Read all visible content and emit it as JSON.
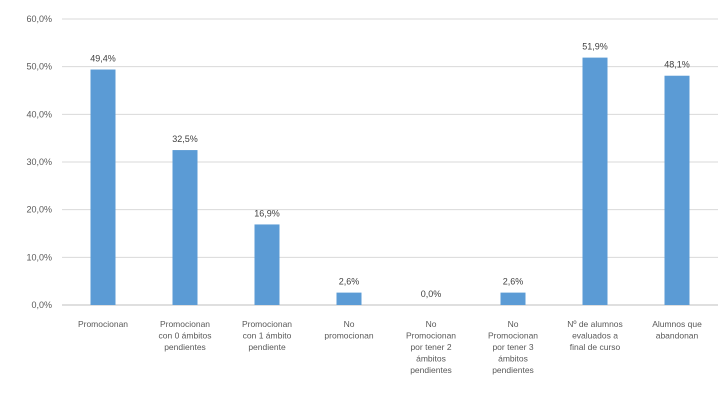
{
  "chart_data": {
    "type": "bar",
    "title": "",
    "xlabel": "",
    "ylabel": "",
    "ylim": [
      0,
      60
    ],
    "y_ticks": [
      0,
      10,
      20,
      30,
      40,
      50,
      60
    ],
    "y_tick_labels": [
      "0,0%",
      "10,0%",
      "20,0%",
      "30,0%",
      "40,0%",
      "50,0%",
      "60,0%"
    ],
    "grid": true,
    "legend": "none",
    "bar_color": "#5b9bd5",
    "categories": [
      [
        "Promocionan"
      ],
      [
        "Promocionan",
        "con 0 ámbitos",
        "pendientes"
      ],
      [
        "Promocionan",
        "con 1 ámbito",
        "pendiente"
      ],
      [
        "No",
        "promocionan"
      ],
      [
        "No",
        "Promocionan",
        "por tener 2",
        "ámbitos",
        "pendientes"
      ],
      [
        "No",
        "Promocionan",
        "por tener 3",
        "ámbitos",
        "pendientes"
      ],
      [
        "Nº de alumnos",
        "evaluados a",
        "final de curso"
      ],
      [
        "Alumnos que",
        "abandonan"
      ]
    ],
    "values": [
      49.4,
      32.5,
      16.9,
      2.6,
      0.0,
      2.6,
      51.9,
      48.1
    ],
    "value_labels": [
      "49,4%",
      "32,5%",
      "16,9%",
      "2,6%",
      "0,0%",
      "2,6%",
      "51,9%",
      "48,1%"
    ]
  }
}
